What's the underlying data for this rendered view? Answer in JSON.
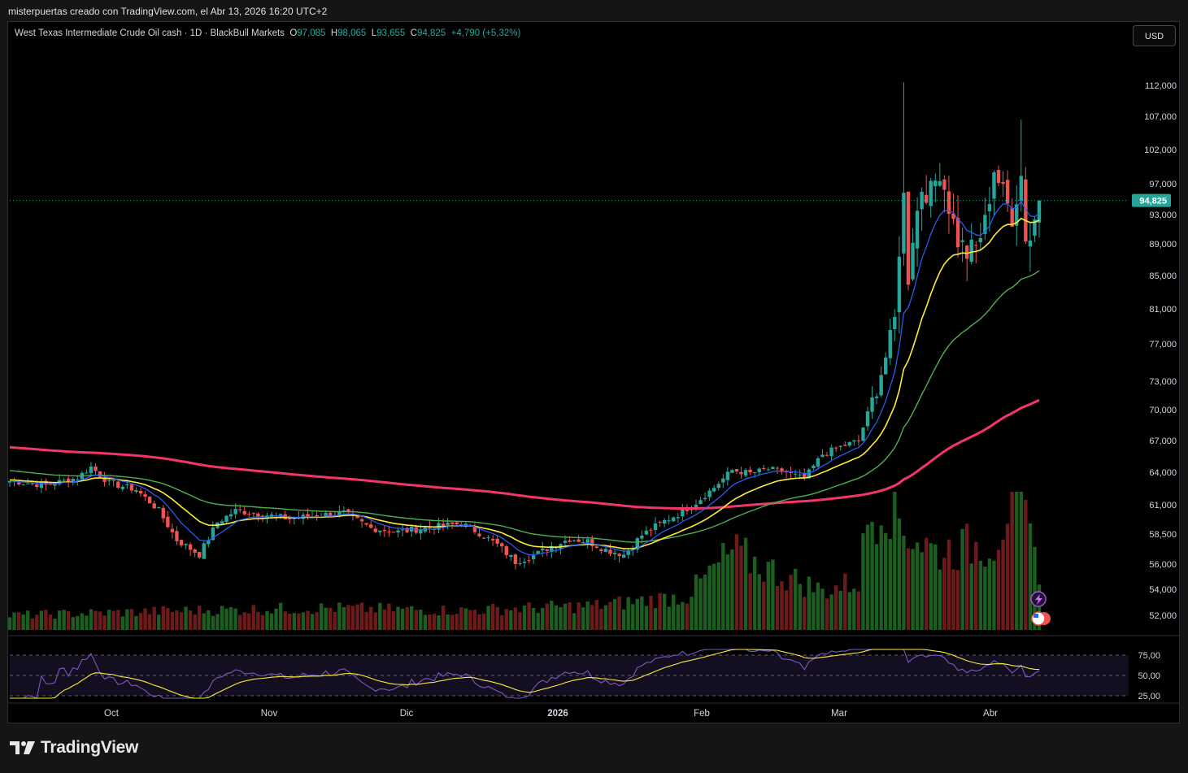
{
  "header": {
    "caption": "misterpuertas creado con TradingView.com, el Abr 13, 2026 16:20 UTC+2"
  },
  "legend": {
    "symbol": "West Texas Intermediate Crude Oil cash · 1D · BlackBull Markets",
    "open_label": "O",
    "open": "97,085",
    "high_label": "H",
    "high": "98,065",
    "low_label": "L",
    "low": "93,655",
    "close_label": "C",
    "close": "94,825",
    "change": "+4,790 (+5,32%)"
  },
  "currency_button": "USD",
  "price_tag": "94,825",
  "brand": "TradingView",
  "colors": {
    "up": "#26a69a",
    "down": "#ef5350",
    "ema_fast": "#2962ff",
    "ema_20": "#ffeb3b",
    "ema_50": "#4caf50",
    "ema_200": "#f23669",
    "rsi": "#7e57c2",
    "rsi_ma": "#ffeb3b"
  },
  "chart_data": {
    "type": "candlestick",
    "price_axis_ticks": [
      "112,000",
      "107,000",
      "102,000",
      "97,000",
      "93,000",
      "89,000",
      "85,000",
      "81,000",
      "77,000",
      "73,000",
      "70,000",
      "67,000",
      "64,000",
      "61,000",
      "58,500",
      "56,000",
      "54,000",
      "52,000"
    ],
    "price_axis_values": [
      112,
      107,
      102,
      97,
      93,
      89,
      85,
      81,
      77,
      73,
      70,
      67,
      64,
      61,
      58.5,
      56,
      54,
      52
    ],
    "time_axis_labels": [
      "Oct",
      "Nov",
      "Dic",
      "2026",
      "Feb",
      "Mar",
      "Abr"
    ],
    "rsi_ticks": [
      "75,00",
      "50,00",
      "25,00"
    ],
    "rsi_levels": [
      75,
      50,
      25
    ],
    "last_close": 94.825,
    "anchors": [
      [
        0,
        63.2
      ],
      [
        8,
        62.8
      ],
      [
        15,
        63.5
      ],
      [
        18,
        64.5
      ],
      [
        22,
        63.0
      ],
      [
        28,
        62.4
      ],
      [
        33,
        60.5
      ],
      [
        37,
        58.0
      ],
      [
        42,
        56.8
      ],
      [
        46,
        59.5
      ],
      [
        50,
        60.5
      ],
      [
        56,
        60.2
      ],
      [
        62,
        59.8
      ],
      [
        68,
        60.1
      ],
      [
        74,
        60.3
      ],
      [
        80,
        59.0
      ],
      [
        86,
        58.7
      ],
      [
        92,
        59.0
      ],
      [
        100,
        59.4
      ],
      [
        104,
        58.6
      ],
      [
        108,
        57.6
      ],
      [
        112,
        56.2
      ],
      [
        116,
        56.7
      ],
      [
        120,
        57.5
      ],
      [
        124,
        58.1
      ],
      [
        128,
        57.9
      ],
      [
        132,
        57.2
      ],
      [
        136,
        56.8
      ],
      [
        140,
        58.4
      ],
      [
        144,
        59.4
      ],
      [
        148,
        60.2
      ],
      [
        152,
        61.2
      ],
      [
        156,
        62.6
      ],
      [
        160,
        64.2
      ],
      [
        164,
        63.9
      ],
      [
        168,
        64.3
      ],
      [
        172,
        64.0
      ],
      [
        176,
        63.4
      ],
      [
        180,
        65.7
      ],
      [
        184,
        66.4
      ],
      [
        188,
        67.0
      ],
      [
        190,
        69.6
      ],
      [
        192,
        72.2
      ],
      [
        194,
        75.6
      ],
      [
        196,
        79.8
      ],
      [
        197,
        88.6
      ],
      [
        198,
        95.2
      ],
      [
        199,
        84.5
      ],
      [
        200,
        90.2
      ],
      [
        202,
        96.6
      ],
      [
        204,
        95.8
      ],
      [
        206,
        99.0
      ],
      [
        208,
        94.2
      ],
      [
        210,
        89.5
      ],
      [
        212,
        87.8
      ],
      [
        214,
        88.5
      ],
      [
        216,
        91.8
      ],
      [
        218,
        99.2
      ],
      [
        220,
        95.6
      ],
      [
        222,
        92.8
      ],
      [
        224,
        98.2
      ],
      [
        225,
        90.2
      ],
      [
        226,
        89.8
      ],
      [
        228,
        94.8
      ]
    ],
    "volume_anchors": [
      [
        0,
        0.6
      ],
      [
        40,
        0.8
      ],
      [
        70,
        0.9
      ],
      [
        100,
        0.8
      ],
      [
        130,
        1.0
      ],
      [
        150,
        1.4
      ],
      [
        160,
        3.2
      ],
      [
        168,
        2.5
      ],
      [
        180,
        1.6
      ],
      [
        188,
        2.0
      ],
      [
        190,
        4.5
      ],
      [
        194,
        5.5
      ],
      [
        198,
        4.2
      ],
      [
        205,
        3.2
      ],
      [
        212,
        3.4
      ],
      [
        218,
        3.6
      ],
      [
        222,
        5.5
      ],
      [
        224,
        5.8
      ],
      [
        226,
        3.5
      ],
      [
        228,
        2.6
      ]
    ]
  }
}
